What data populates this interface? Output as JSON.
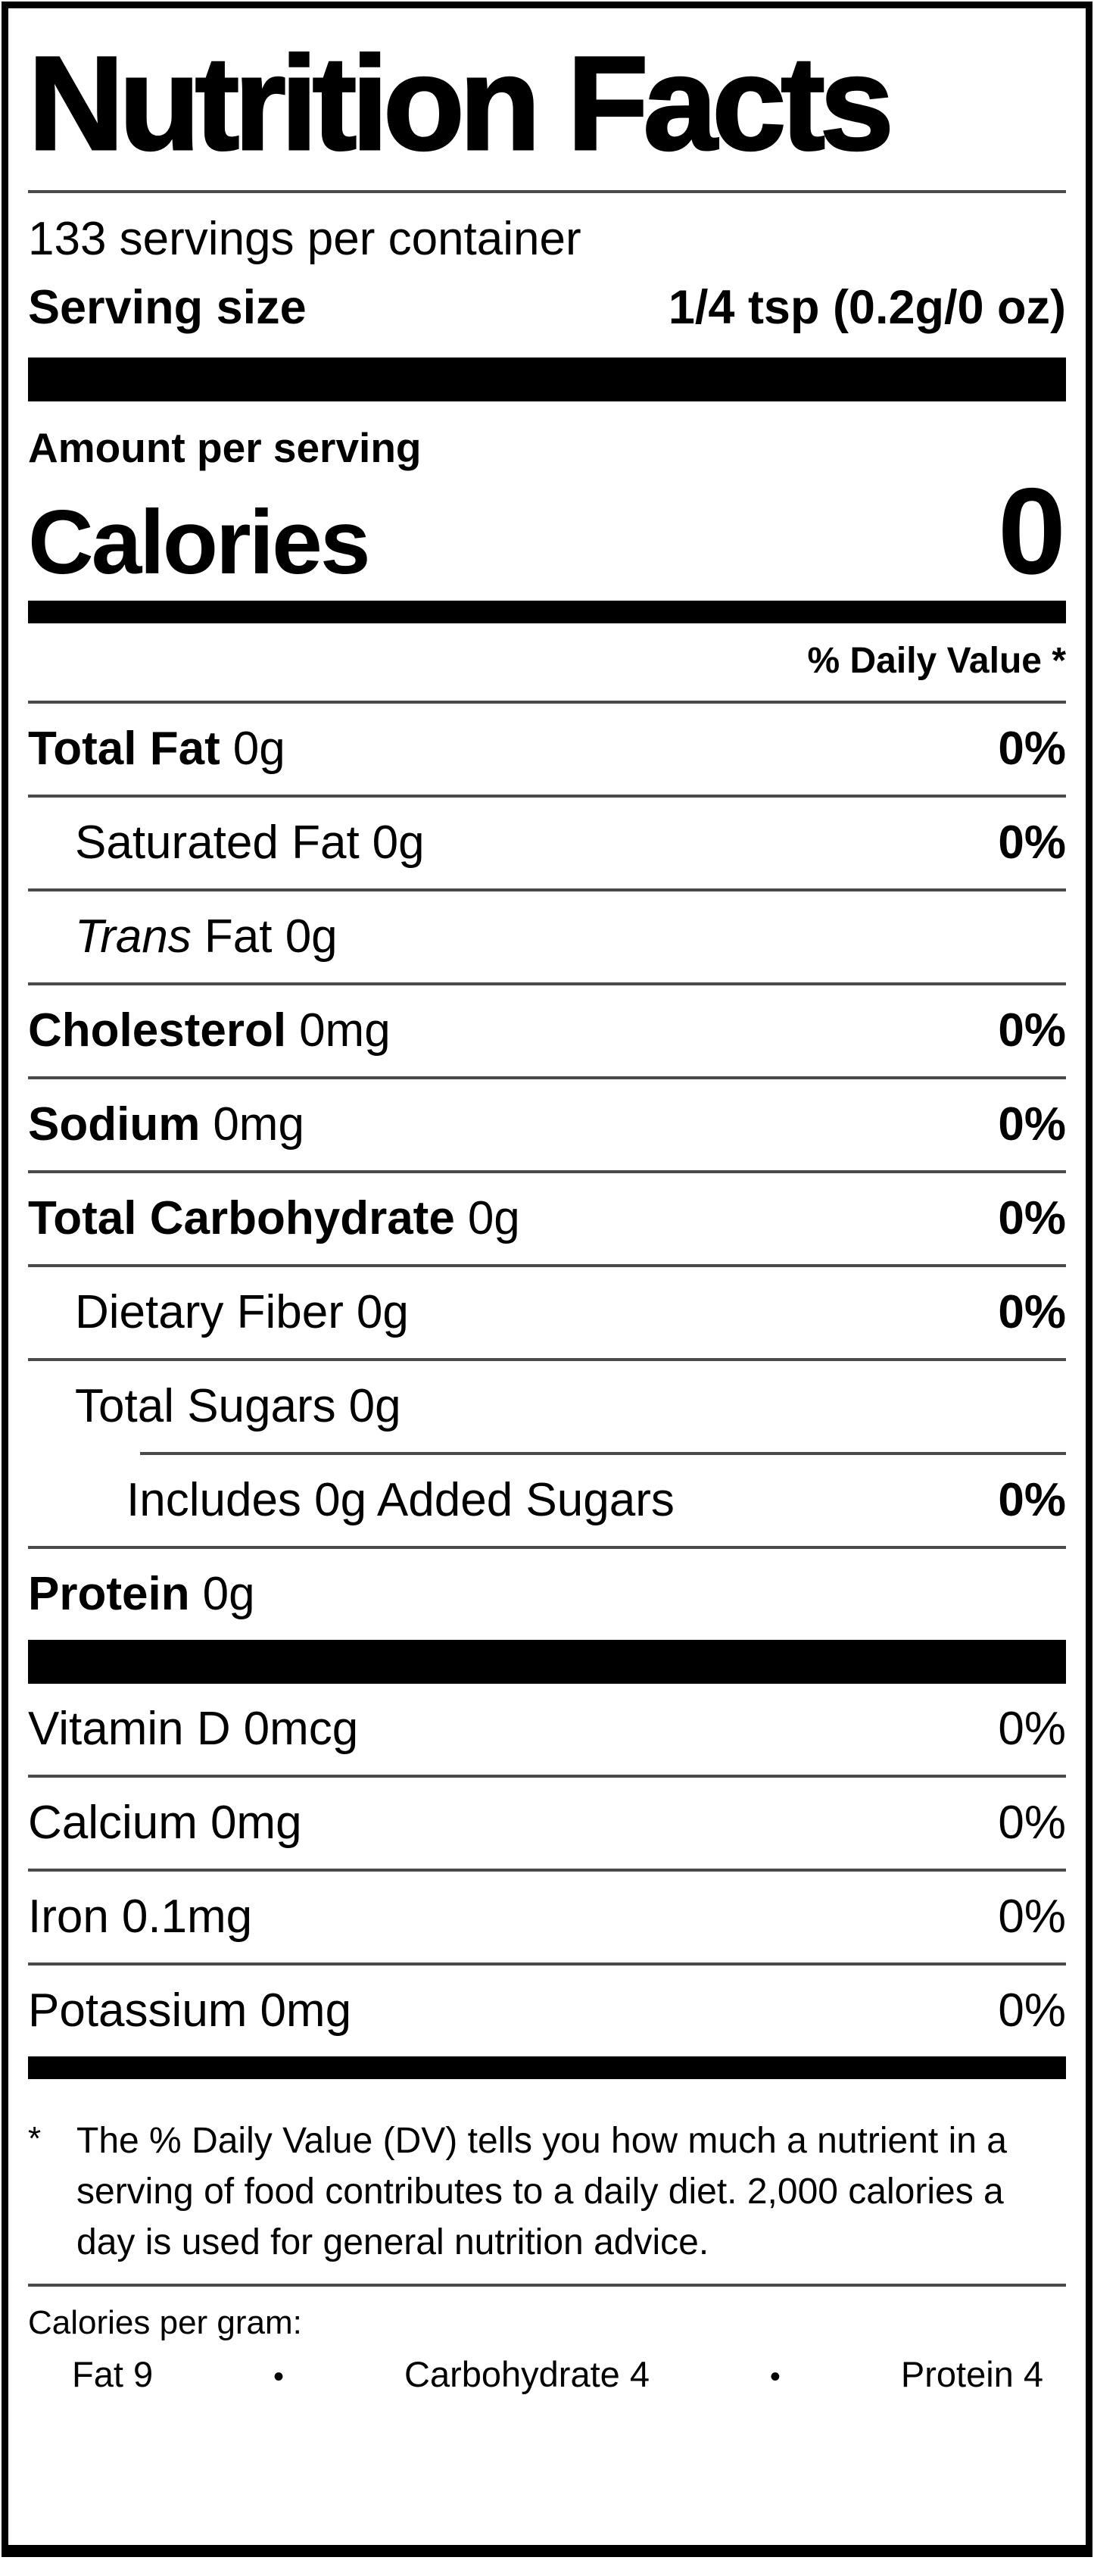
{
  "label": {
    "title": "Nutrition Facts",
    "servings_per_container": "133 servings per container",
    "serving_size_label": "Serving size",
    "serving_size_value": "1/4 tsp (0.2g/0 oz)",
    "amount_per_serving": "Amount per serving",
    "calories_label": "Calories",
    "calories_value": "0",
    "daily_value_header": "% Daily Value *",
    "nutrients": [
      {
        "name": "Total Fat",
        "amount": "0g",
        "dv": "0%"
      },
      {
        "name": "Saturated Fat",
        "amount": "0g",
        "dv": "0%"
      },
      {
        "name": "Trans",
        "amount": "Fat 0g",
        "dv": ""
      },
      {
        "name": "Cholesterol",
        "amount": "0mg",
        "dv": "0%"
      },
      {
        "name": "Sodium",
        "amount": "0mg",
        "dv": "0%"
      },
      {
        "name": "Total Carbohydrate",
        "amount": "0g",
        "dv": "0%"
      },
      {
        "name": "Dietary Fiber",
        "amount": "0g",
        "dv": "0%"
      },
      {
        "name": "Total Sugars",
        "amount": "0g",
        "dv": ""
      },
      {
        "name": "Includes 0g Added Sugars",
        "amount": "",
        "dv": "0%"
      },
      {
        "name": "Protein",
        "amount": "0g",
        "dv": ""
      }
    ],
    "micronutrients": [
      {
        "name": "Vitamin D",
        "amount": "0mcg",
        "dv": "0%"
      },
      {
        "name": "Calcium",
        "amount": "0mg",
        "dv": "0%"
      },
      {
        "name": "Iron",
        "amount": "0.1mg",
        "dv": "0%"
      },
      {
        "name": "Potassium",
        "amount": "0mg",
        "dv": "0%"
      }
    ],
    "footnote_marker": "*",
    "footnote": "The % Daily Value (DV) tells you how much a nutrient in a serving of food contributes to a daily diet. 2,000 calories a day is used for general nutrition advice.",
    "calories_per_gram": {
      "heading": "Calories per gram:",
      "bullet": "•",
      "items": [
        "Fat 9",
        "Carbohydrate 4",
        "Protein 4"
      ]
    },
    "colors": {
      "text": "#000000",
      "background": "#ffffff",
      "hairline": "#4a4a4a",
      "bar": "#000000"
    }
  }
}
